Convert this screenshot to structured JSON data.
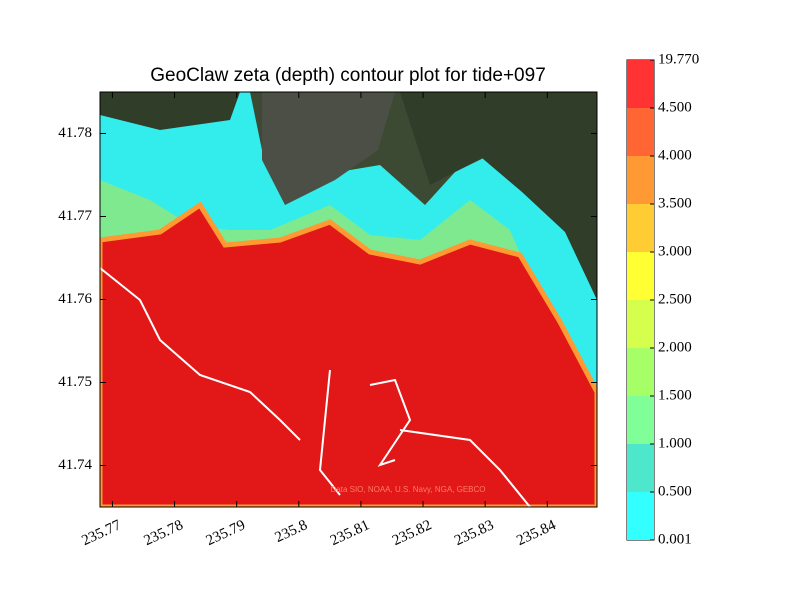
{
  "chart_data": {
    "type": "contour",
    "title": "GeoClaw zeta (depth) contour plot for tide+097",
    "attribution": "Data SIO, NOAA, U.S. Navy, NGA, GEBCO",
    "xlim": [
      235.768,
      235.848
    ],
    "ylim": [
      41.735,
      41.785
    ],
    "xticks": [
      235.77,
      235.78,
      235.79,
      235.8,
      235.81,
      235.82,
      235.83,
      235.84
    ],
    "yticks": [
      41.74,
      41.75,
      41.76,
      41.77,
      41.78
    ],
    "colorbar": {
      "levels": [
        0.001,
        {
          "value": 0.5,
          "label": "0.500"
        },
        {
          "value": 1,
          "label": "1.000"
        },
        {
          "value": 1.5,
          "label": "1.500"
        },
        {
          "value": 2,
          "label": "2.000"
        },
        {
          "value": 2.5,
          "label": "2.500"
        },
        {
          "value": 3,
          "label": "3.000"
        },
        {
          "value": 3.5,
          "label": "3.500"
        },
        {
          "value": 4,
          "label": "4.000"
        },
        {
          "value": 4.5,
          "label": "4.500"
        },
        {
          "value": 19.77,
          "label": "19.770"
        }
      ],
      "colors": [
        "#33ffff",
        "#4de8cc",
        "#80ff99",
        "#a6ff66",
        "#d5ff4c",
        "#ffff33",
        "#ffcc33",
        "#ff9933",
        "#ff6633",
        "#ff3333"
      ]
    }
  }
}
